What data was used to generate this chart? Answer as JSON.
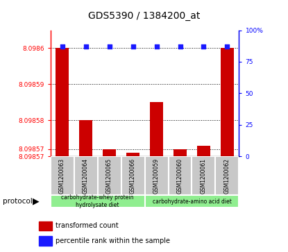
{
  "title": "GDS5390 / 1384200_at",
  "samples": [
    "GSM1200063",
    "GSM1200064",
    "GSM1200065",
    "GSM1200066",
    "GSM1200059",
    "GSM1200060",
    "GSM1200061",
    "GSM1200062"
  ],
  "bar_values": [
    8.0986,
    8.09858,
    8.098572,
    8.098571,
    8.098585,
    8.098572,
    8.098573,
    8.0986
  ],
  "percentile_values": [
    87,
    87,
    87,
    87,
    87,
    87,
    87,
    87
  ],
  "ymin": 8.09857,
  "ymax": 8.098605,
  "yticks_left": [
    8.09857,
    8.098572,
    8.09858,
    8.09859,
    8.0986
  ],
  "ytick_labels_left": [
    "8.09857",
    "8.09857",
    "8.09858",
    "8.09859",
    "8.0986"
  ],
  "yticks_right": [
    0,
    25,
    50,
    75,
    100
  ],
  "bar_color": "#cc0000",
  "dot_color": "#1a1aff",
  "group1_label": "carbohydrate-whey protein\nhydrolysate diet",
  "group2_label": "carbohydrate-amino acid diet",
  "group1_count": 4,
  "group2_count": 4,
  "group_bg_color": "#90ee90",
  "sample_bg_color": "#c8c8c8",
  "protocol_label": "protocol",
  "legend_bar_label": "transformed count",
  "legend_dot_label": "percentile rank within the sample"
}
